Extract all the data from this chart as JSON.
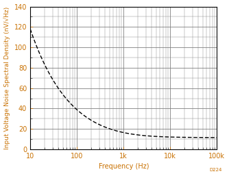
{
  "title": "",
  "xlabel": "Frequency (Hz)",
  "ylabel": "Input Voltage Noise Spectral Density (nV/√Hz)",
  "xlim": [
    10,
    100000
  ],
  "ylim": [
    0,
    140
  ],
  "yticks": [
    0,
    20,
    40,
    60,
    80,
    100,
    120,
    140
  ],
  "xtick_labels": [
    "10",
    "100",
    "1k",
    "10k",
    "100k"
  ],
  "xtick_values": [
    10,
    100,
    1000,
    10000,
    100000
  ],
  "curve_color": "#000000",
  "background_color": "#ffffff",
  "grid_color": "#808080",
  "label_color": "#C87000",
  "watermark": "D224",
  "watermark_color": "#C87000",
  "noise_floor": 11.5,
  "flicker_coeff": 137918,
  "label_fontsize": 7.0,
  "tick_fontsize": 7.0
}
